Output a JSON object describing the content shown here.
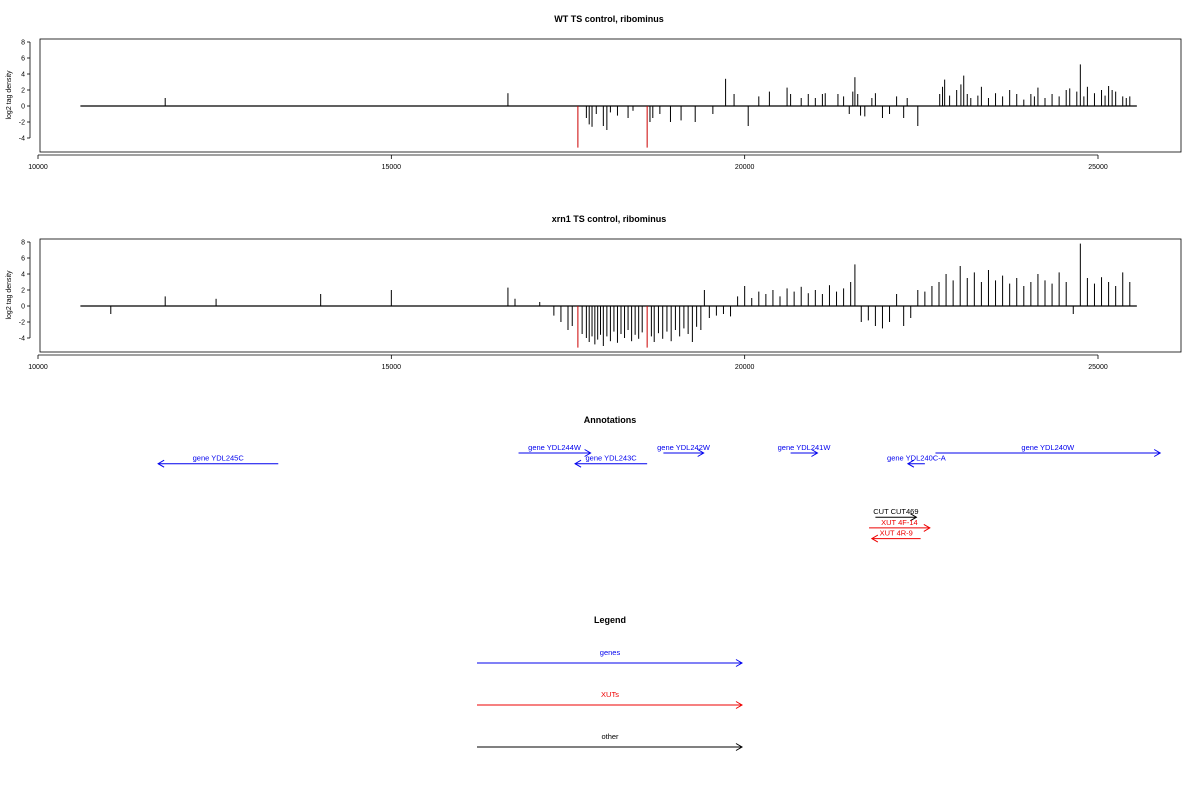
{
  "chart_data": [
    {
      "type": "bar",
      "title": "WT TS control, ribominus",
      "ylabel": "log2 tag density",
      "xlim": [
        10000,
        26150
      ],
      "ylim": [
        -5.5,
        8.5
      ],
      "xticks": [
        10000,
        15000,
        20000,
        25000
      ],
      "yticks": [
        -4,
        -2,
        0,
        2,
        4,
        6,
        8
      ],
      "baseline": [
        10600,
        25550
      ],
      "bars": [
        [
          11800,
          1.0
        ],
        [
          16650,
          1.6
        ],
        [
          17640,
          -5.2,
          "#cc0000"
        ],
        [
          17760,
          -1.5
        ],
        [
          17800,
          -2.3
        ],
        [
          17840,
          -2.6
        ],
        [
          17900,
          -1.0
        ],
        [
          18000,
          -2.5
        ],
        [
          18050,
          -3.0
        ],
        [
          18100,
          -0.8
        ],
        [
          18200,
          -1.2
        ],
        [
          18350,
          -1.5
        ],
        [
          18420,
          -0.6
        ],
        [
          18620,
          -5.2,
          "#cc0000"
        ],
        [
          18660,
          -2.0
        ],
        [
          18700,
          -1.5
        ],
        [
          18800,
          -1.0
        ],
        [
          18950,
          -2.0
        ],
        [
          19100,
          -1.8
        ],
        [
          19300,
          -2.0
        ],
        [
          19550,
          -1.0
        ],
        [
          19730,
          3.4
        ],
        [
          19850,
          1.5
        ],
        [
          20050,
          -2.5
        ],
        [
          20200,
          1.2
        ],
        [
          20350,
          1.8
        ],
        [
          20600,
          2.3
        ],
        [
          20650,
          1.5
        ],
        [
          20800,
          1.0
        ],
        [
          20900,
          1.5
        ],
        [
          21000,
          1.0
        ],
        [
          21100,
          1.5
        ],
        [
          21140,
          1.6
        ],
        [
          21320,
          1.5
        ],
        [
          21400,
          1.2
        ],
        [
          21480,
          -1.0
        ],
        [
          21530,
          1.8
        ],
        [
          21560,
          3.6
        ],
        [
          21600,
          1.5
        ],
        [
          21640,
          -1.2
        ],
        [
          21700,
          -1.3
        ],
        [
          21800,
          1.0
        ],
        [
          21850,
          1.6
        ],
        [
          21950,
          -1.5
        ],
        [
          22050,
          -1.0
        ],
        [
          22150,
          1.2
        ],
        [
          22250,
          -1.5
        ],
        [
          22300,
          1.0
        ],
        [
          22450,
          -2.5
        ],
        [
          22760,
          1.5
        ],
        [
          22800,
          2.4
        ],
        [
          22830,
          3.3
        ],
        [
          22900,
          1.3
        ],
        [
          23000,
          2.0
        ],
        [
          23060,
          2.7
        ],
        [
          23100,
          3.8
        ],
        [
          23150,
          1.5
        ],
        [
          23200,
          1.0
        ],
        [
          23300,
          1.3
        ],
        [
          23350,
          2.4
        ],
        [
          23450,
          1.0
        ],
        [
          23550,
          1.6
        ],
        [
          23650,
          1.2
        ],
        [
          23750,
          2.0
        ],
        [
          23850,
          1.5
        ],
        [
          23950,
          0.8
        ],
        [
          24050,
          1.5
        ],
        [
          24100,
          1.2
        ],
        [
          24150,
          2.3
        ],
        [
          24250,
          1.0
        ],
        [
          24350,
          1.5
        ],
        [
          24450,
          1.2
        ],
        [
          24550,
          2.0
        ],
        [
          24600,
          2.2
        ],
        [
          24700,
          1.8
        ],
        [
          24750,
          5.2
        ],
        [
          24800,
          1.2
        ],
        [
          24850,
          2.4
        ],
        [
          24950,
          1.6
        ],
        [
          25050,
          2.0
        ],
        [
          25100,
          1.3
        ],
        [
          25150,
          2.5
        ],
        [
          25200,
          2.0
        ],
        [
          25250,
          1.8
        ],
        [
          25350,
          1.2
        ],
        [
          25400,
          1.0
        ],
        [
          25450,
          1.2
        ]
      ]
    },
    {
      "type": "bar",
      "title": "xrn1 TS control, ribominus",
      "ylabel": "log2 tag density",
      "xlim": [
        10000,
        26150
      ],
      "ylim": [
        -5.5,
        8.5
      ],
      "xticks": [
        10000,
        15000,
        20000,
        25000
      ],
      "yticks": [
        -4,
        -2,
        0,
        2,
        4,
        6,
        8
      ],
      "baseline": [
        10600,
        25550
      ],
      "bars": [
        [
          11030,
          -1.0
        ],
        [
          11800,
          1.2
        ],
        [
          12520,
          0.9
        ],
        [
          14000,
          1.5
        ],
        [
          15000,
          2.0
        ],
        [
          16650,
          2.3
        ],
        [
          16750,
          0.9
        ],
        [
          17100,
          0.5
        ],
        [
          17300,
          -1.2
        ],
        [
          17400,
          -2.0
        ],
        [
          17500,
          -3.0
        ],
        [
          17560,
          -2.5
        ],
        [
          17640,
          -5.2,
          "#cc0000"
        ],
        [
          17700,
          -3.5
        ],
        [
          17760,
          -4.0
        ],
        [
          17800,
          -4.5
        ],
        [
          17840,
          -3.8
        ],
        [
          17880,
          -4.8
        ],
        [
          17920,
          -4.2
        ],
        [
          17960,
          -3.6
        ],
        [
          18000,
          -5.0
        ],
        [
          18050,
          -3.8
        ],
        [
          18100,
          -4.4
        ],
        [
          18150,
          -3.2
        ],
        [
          18200,
          -4.6
        ],
        [
          18250,
          -3.5
        ],
        [
          18300,
          -4.0
        ],
        [
          18350,
          -3.0
        ],
        [
          18400,
          -4.4
        ],
        [
          18450,
          -3.6
        ],
        [
          18500,
          -4.1
        ],
        [
          18550,
          -3.3
        ],
        [
          18620,
          -5.2,
          "#cc0000"
        ],
        [
          18680,
          -3.8
        ],
        [
          18720,
          -4.5
        ],
        [
          18780,
          -3.4
        ],
        [
          18840,
          -4.1
        ],
        [
          18900,
          -3.2
        ],
        [
          18960,
          -4.4
        ],
        [
          19020,
          -3.0
        ],
        [
          19080,
          -3.8
        ],
        [
          19140,
          -2.8
        ],
        [
          19200,
          -3.5
        ],
        [
          19260,
          -4.5
        ],
        [
          19320,
          -2.6
        ],
        [
          19380,
          -3.0
        ],
        [
          19430,
          2.0
        ],
        [
          19500,
          -1.5
        ],
        [
          19600,
          -1.2
        ],
        [
          19700,
          -1.0
        ],
        [
          19800,
          -1.3
        ],
        [
          19900,
          1.2
        ],
        [
          20000,
          2.5
        ],
        [
          20100,
          1.0
        ],
        [
          20200,
          1.8
        ],
        [
          20300,
          1.5
        ],
        [
          20400,
          2.0
        ],
        [
          20500,
          1.2
        ],
        [
          20600,
          2.2
        ],
        [
          20700,
          1.8
        ],
        [
          20800,
          2.4
        ],
        [
          20900,
          1.6
        ],
        [
          21000,
          2.0
        ],
        [
          21100,
          1.5
        ],
        [
          21200,
          2.6
        ],
        [
          21300,
          1.8
        ],
        [
          21400,
          2.2
        ],
        [
          21500,
          3.0
        ],
        [
          21560,
          5.2
        ],
        [
          21650,
          -2.0
        ],
        [
          21750,
          -1.8
        ],
        [
          21850,
          -2.5
        ],
        [
          21950,
          -2.8
        ],
        [
          22050,
          -2.0
        ],
        [
          22150,
          1.5
        ],
        [
          22250,
          -2.5
        ],
        [
          22350,
          -1.5
        ],
        [
          22450,
          2.0
        ],
        [
          22550,
          1.8
        ],
        [
          22650,
          2.5
        ],
        [
          22750,
          3.0
        ],
        [
          22850,
          4.0
        ],
        [
          22950,
          3.2
        ],
        [
          23050,
          5.0
        ],
        [
          23150,
          3.5
        ],
        [
          23250,
          4.2
        ],
        [
          23350,
          3.0
        ],
        [
          23450,
          4.5
        ],
        [
          23550,
          3.2
        ],
        [
          23650,
          3.8
        ],
        [
          23750,
          2.8
        ],
        [
          23850,
          3.5
        ],
        [
          23950,
          2.5
        ],
        [
          24050,
          3.0
        ],
        [
          24150,
          4.0
        ],
        [
          24250,
          3.2
        ],
        [
          24350,
          2.8
        ],
        [
          24450,
          4.2
        ],
        [
          24550,
          3.0
        ],
        [
          24650,
          -1.0
        ],
        [
          24750,
          7.8
        ],
        [
          24850,
          3.5
        ],
        [
          24950,
          2.8
        ],
        [
          25050,
          3.6
        ],
        [
          25150,
          3.0
        ],
        [
          25250,
          2.5
        ],
        [
          25350,
          4.2
        ],
        [
          25450,
          3.0
        ]
      ]
    }
  ],
  "annotations": {
    "title": "Annotations",
    "features": [
      {
        "label": "gene YDL245C",
        "start": 11700,
        "end": 13400,
        "strand": "-",
        "row": 1,
        "color": "#0000ee"
      },
      {
        "label": "gene YDL244W",
        "start": 16800,
        "end": 17820,
        "strand": "+",
        "row": 0,
        "color": "#0000ee"
      },
      {
        "label": "gene YDL243C",
        "start": 17600,
        "end": 18620,
        "strand": "-",
        "row": 1,
        "color": "#0000ee"
      },
      {
        "label": "gene YDL242W",
        "start": 18850,
        "end": 19420,
        "strand": "+",
        "row": 0,
        "color": "#0000ee"
      },
      {
        "label": "gene YDL241W",
        "start": 20650,
        "end": 21030,
        "strand": "+",
        "row": 0,
        "color": "#0000ee"
      },
      {
        "label": "gene YDL240C-A",
        "start": 22310,
        "end": 22550,
        "strand": "-",
        "row": 1,
        "color": "#0000ee"
      },
      {
        "label": "gene YDL240W",
        "start": 22700,
        "end": 25880,
        "strand": "+",
        "row": 0,
        "color": "#0000ee"
      },
      {
        "label": "CUT CUT469",
        "start": 21850,
        "end": 22430,
        "strand": "+",
        "row": 6,
        "color": "#000000"
      },
      {
        "label": "XUT 4F-14",
        "start": 21760,
        "end": 22620,
        "strand": "+",
        "row": 7,
        "color": "#ee0000"
      },
      {
        "label": "XUT 4R-9",
        "start": 21800,
        "end": 22490,
        "strand": "-",
        "row": 8,
        "color": "#ee0000"
      }
    ]
  },
  "legend": {
    "title": "Legend",
    "items": [
      {
        "label": "genes",
        "color": "#0000ee"
      },
      {
        "label": "XUTs",
        "color": "#ee0000"
      },
      {
        "label": "other",
        "color": "#000000"
      }
    ]
  }
}
